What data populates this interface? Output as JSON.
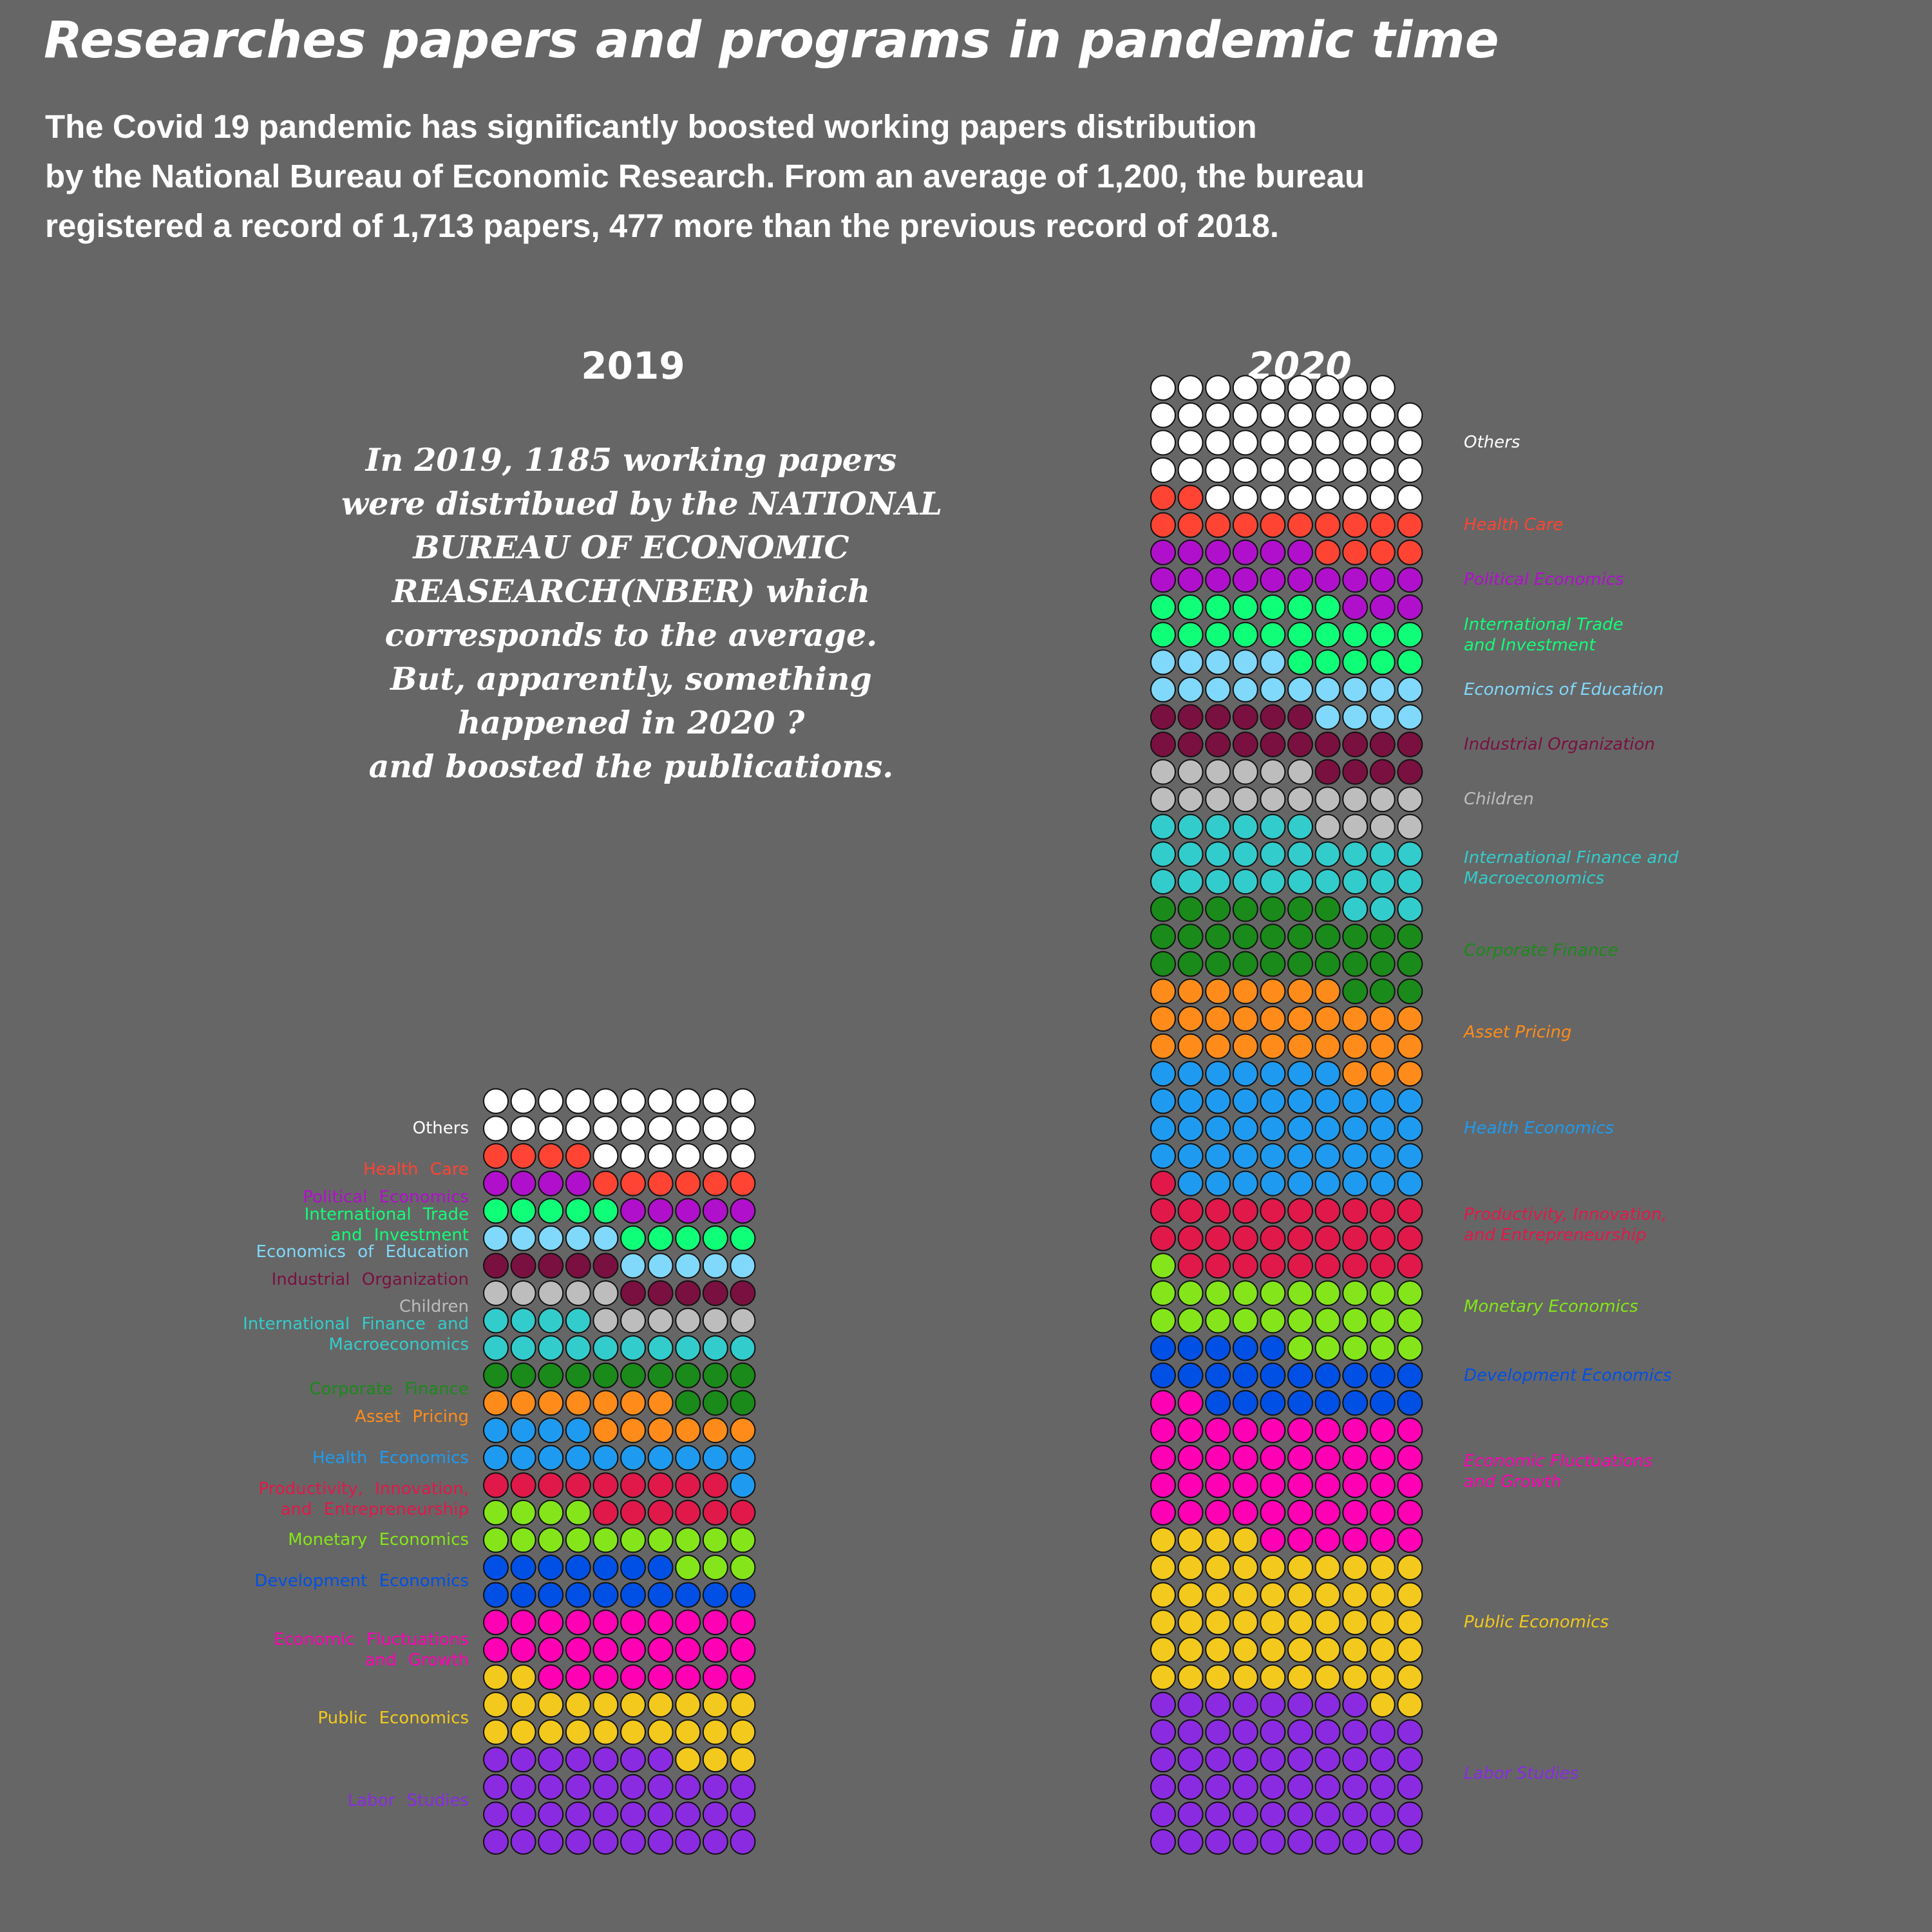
{
  "title": "Researches papers and programs in pandemic time",
  "subtitle_lines": [
    "The Covid 19 pandemic has significantly boosted working papers distribution",
    "by the National Bureau of Economic Research. From an average of 1,200, the bureau",
    "registered a record of 1,713 papers, 477 more than the previous record of 2018."
  ],
  "annotation_lines": [
    "In 2019, 1185 working papers",
    "were distribued by the NATIONAL",
    "BUREAU OF ECONOMIC",
    "REASEARCH(NBER) which",
    "corresponds to the average.",
    "But, apparently, something",
    "happened in 2020 ?",
    "and boosted the publications."
  ],
  "chart_data": {
    "type": "waffle",
    "unit": "dot",
    "columns": 10,
    "legend_placement": "left of 2019 grid, right of 2020 grid",
    "categories": [
      {
        "key": "labor",
        "label": "Labor Studies",
        "color": "#8a2be2"
      },
      {
        "key": "public",
        "label": "Public Economics",
        "color": "#f2c91c"
      },
      {
        "key": "fluct",
        "label": "Economic Fluctuations\nand Growth",
        "color": "#ff00b4"
      },
      {
        "key": "dev",
        "label": "Development Economics",
        "color": "#0050e6"
      },
      {
        "key": "monetary",
        "label": "Monetary Economics",
        "color": "#84e61a"
      },
      {
        "key": "prod",
        "label": "Productivity, Innovation,\nand Entrepreneurship",
        "color": "#e0194a"
      },
      {
        "key": "healthecon",
        "label": "Health Economics",
        "color": "#1e9bf0"
      },
      {
        "key": "asset",
        "label": "Asset Pricing",
        "color": "#ff8c1a"
      },
      {
        "key": "corp",
        "label": "Corporate Finance",
        "color": "#1a8a1a"
      },
      {
        "key": "intfin",
        "label": "International Finance and\nMacroeconomics",
        "color": "#33cccc"
      },
      {
        "key": "children",
        "label": "Children",
        "color": "#bdbdbd"
      },
      {
        "key": "indorg",
        "label": "Industrial Organization",
        "color": "#7a1040"
      },
      {
        "key": "edu",
        "label": "Economics of Education",
        "color": "#80d8fb"
      },
      {
        "key": "trade",
        "label": "International Trade\nand Investment",
        "color": "#10ff78"
      },
      {
        "key": "polecon",
        "label": "Political Economics",
        "color": "#b010cc"
      },
      {
        "key": "healthcare",
        "label": "Health Care",
        "color": "#ff4433"
      },
      {
        "key": "others",
        "label": "Others",
        "color": "#ffffff"
      }
    ],
    "series": [
      {
        "name": "2019",
        "values": [
          37,
          25,
          28,
          17,
          17,
          15,
          15,
          13,
          13,
          14,
          11,
          10,
          10,
          10,
          9,
          10,
          26
        ]
      },
      {
        "name": "2020",
        "values": [
          58,
          56,
          48,
          23,
          26,
          30,
          46,
          30,
          30,
          29,
          20,
          20,
          19,
          22,
          19,
          16,
          47
        ]
      }
    ]
  }
}
